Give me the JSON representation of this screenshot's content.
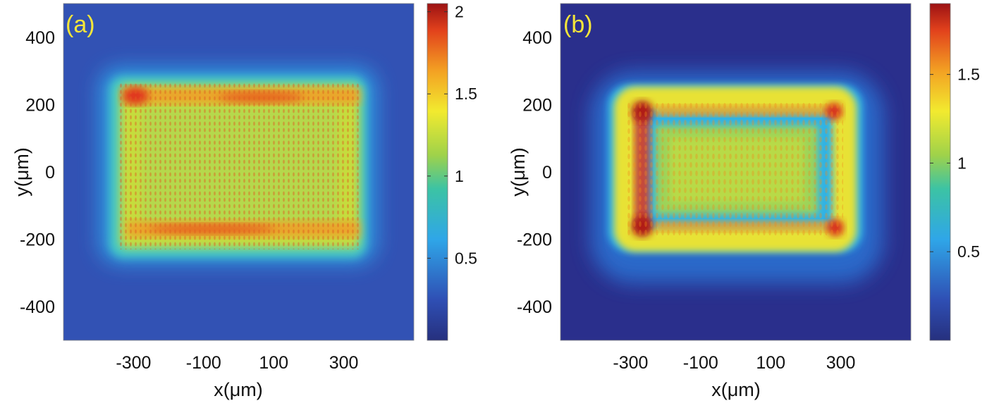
{
  "chart_data": [
    {
      "type": "heatmap",
      "panel_label": "(a)",
      "xlabel": "x(μm)",
      "ylabel": "y(μm)",
      "xticks": [
        -300,
        -100,
        100,
        300
      ],
      "yticks": [
        400,
        200,
        0,
        -200,
        -400
      ],
      "xlim": [
        -500,
        500
      ],
      "ylim": [
        -500,
        500
      ],
      "colorbar_ticks": [
        0.5,
        1,
        1.5,
        2
      ],
      "colorbar_range": [
        0,
        2.05
      ],
      "colormap": "jet",
      "pattern": "filled rectangle of speckled intensity roughly 1.2, bright rows near top and bottom edges",
      "rect_x": [
        -340,
        340
      ],
      "rect_y": [
        -230,
        250
      ],
      "background_value": 0.25
    },
    {
      "type": "heatmap",
      "panel_label": "(b)",
      "xlabel": "x(μm)",
      "ylabel": "y(μm)",
      "xticks": [
        -300,
        -100,
        100,
        300
      ],
      "yticks": [
        400,
        200,
        0,
        -200,
        -400
      ],
      "xlim": [
        -500,
        500
      ],
      "ylim": [
        -500,
        500
      ],
      "colorbar_ticks": [
        0.5,
        1,
        1.5
      ],
      "colorbar_range": [
        0,
        1.9
      ],
      "colormap": "jet",
      "pattern": "rectangular frame with bright corners and left edge, moderate interior",
      "rect_x": [
        -280,
        290
      ],
      "rect_y": [
        -170,
        180
      ],
      "background_value": 0.05
    }
  ],
  "colors": {
    "label_yellow": "#f5e63a",
    "bg_a": "#3252b4",
    "bg_b": "#2a2f8c"
  }
}
